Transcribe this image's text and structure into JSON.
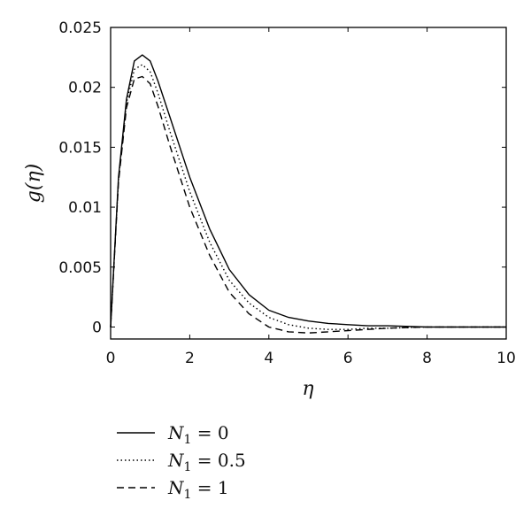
{
  "chart_data": {
    "type": "line",
    "xlabel": "η",
    "ylabel": "g(η)",
    "xlim": [
      0,
      10
    ],
    "ylim": [
      -0.001,
      0.025
    ],
    "xticks": [
      "0",
      "2",
      "4",
      "6",
      "8",
      "10"
    ],
    "yticks": [
      "0",
      "0.005",
      "0.01",
      "0.015",
      "0.02",
      "0.025"
    ],
    "grid": false,
    "legend_position": "below",
    "series": [
      {
        "name": "N1 = 0",
        "legend": {
          "symbol": "N",
          "sub": "1",
          "rest": " = 0"
        },
        "style": "solid",
        "x": [
          0,
          0.2,
          0.4,
          0.6,
          0.8,
          1.0,
          1.2,
          1.5,
          2.0,
          2.5,
          3.0,
          3.5,
          4.0,
          4.5,
          5.0,
          5.5,
          6.0,
          6.5,
          7.0,
          8.0,
          9.0,
          10.0
        ],
        "y": [
          0,
          0.0125,
          0.019,
          0.0222,
          0.0227,
          0.0222,
          0.0205,
          0.0175,
          0.0125,
          0.0082,
          0.0048,
          0.0027,
          0.0014,
          0.0008,
          0.0005,
          0.0003,
          0.0002,
          0.0001,
          0.0001,
          0.0,
          0.0,
          0.0
        ]
      },
      {
        "name": "N1 = 0.5",
        "legend": {
          "symbol": "N",
          "sub": "1",
          "rest": " = 0.5"
        },
        "style": "dotted",
        "x": [
          0,
          0.2,
          0.4,
          0.6,
          0.8,
          1.0,
          1.2,
          1.5,
          2.0,
          2.5,
          3.0,
          3.5,
          4.0,
          4.5,
          5.0,
          5.5,
          6.0,
          6.5,
          7.0,
          8.0,
          9.0,
          10.0
        ],
        "y": [
          0,
          0.0123,
          0.0187,
          0.0215,
          0.0219,
          0.0213,
          0.0195,
          0.0163,
          0.0113,
          0.0071,
          0.0039,
          0.002,
          0.0008,
          0.0002,
          -0.0001,
          -0.0002,
          -0.0002,
          -0.0001,
          -0.0001,
          0.0,
          0.0,
          0.0
        ]
      },
      {
        "name": "N1 = 1",
        "legend": {
          "symbol": "N",
          "sub": "1",
          "rest": " = 1"
        },
        "style": "dashed",
        "x": [
          0,
          0.2,
          0.4,
          0.6,
          0.8,
          1.0,
          1.2,
          1.5,
          2.0,
          2.5,
          3.0,
          3.5,
          4.0,
          4.5,
          5.0,
          5.5,
          6.0,
          6.5,
          7.0,
          8.0,
          9.0,
          10.0
        ],
        "y": [
          0,
          0.0121,
          0.0183,
          0.0207,
          0.0209,
          0.0203,
          0.0184,
          0.0151,
          0.01,
          0.006,
          0.0029,
          0.0011,
          0.0,
          -0.0004,
          -0.0005,
          -0.0004,
          -0.0003,
          -0.0002,
          -0.0001,
          0.0,
          0.0,
          0.0
        ]
      }
    ]
  }
}
